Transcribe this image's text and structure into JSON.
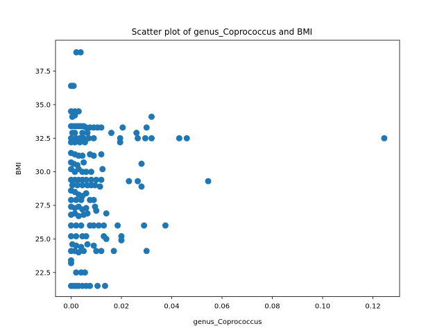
{
  "chart_data": {
    "type": "scatter",
    "title": "Scatter plot of genus_Coprococcus and BMI",
    "xlabel": "genus_Coprococcus",
    "ylabel": "BMI",
    "xlim": [
      -0.0062,
      0.1306
    ],
    "ylim": [
      20.7,
      39.8
    ],
    "xticks": [
      0.0,
      0.02,
      0.04,
      0.06,
      0.08,
      0.1,
      0.12
    ],
    "xtick_labels": [
      "0.00",
      "0.02",
      "0.04",
      "0.06",
      "0.08",
      "0.10",
      "0.12"
    ],
    "yticks": [
      22.5,
      25.0,
      27.5,
      30.0,
      32.5,
      35.0,
      37.5
    ],
    "ytick_labels": [
      "22.5",
      "25.0",
      "27.5",
      "30.0",
      "32.5",
      "35.0",
      "37.5"
    ],
    "grid": false,
    "marker_color": "#1f77b4",
    "series": [
      {
        "points": [
          [
            0.0021,
            38.9
          ],
          [
            0.0038,
            38.9
          ],
          [
            0.0,
            36.4
          ],
          [
            0.0005,
            36.4
          ],
          [
            0.001,
            36.4
          ],
          [
            0.0,
            34.5
          ],
          [
            0.0015,
            34.5
          ],
          [
            0.003,
            34.5
          ],
          [
            0.0005,
            34.1
          ],
          [
            0.0015,
            34.2
          ],
          [
            0.0,
            33.4
          ],
          [
            0.001,
            33.4
          ],
          [
            0.002,
            33.4
          ],
          [
            0.003,
            33.4
          ],
          [
            0.004,
            33.4
          ],
          [
            0.005,
            33.4
          ],
          [
            0.006,
            33.3
          ],
          [
            0.0075,
            33.3
          ],
          [
            0.009,
            33.3
          ],
          [
            0.0105,
            33.3
          ],
          [
            0.012,
            33.3
          ],
          [
            0.0005,
            32.9
          ],
          [
            0.0015,
            32.9
          ],
          [
            0.0045,
            32.9
          ],
          [
            0.0065,
            32.9
          ],
          [
            0.0,
            32.5
          ],
          [
            0.002,
            32.5
          ],
          [
            0.0035,
            32.5
          ],
          [
            0.005,
            32.5
          ],
          [
            0.007,
            32.5
          ],
          [
            0.009,
            32.5
          ],
          [
            0.0,
            32.2
          ],
          [
            0.0015,
            32.2
          ],
          [
            0.0035,
            32.2
          ],
          [
            0.0055,
            32.2
          ],
          [
            0.016,
            32.9
          ],
          [
            0.0195,
            32.2
          ],
          [
            0.0195,
            32.5
          ],
          [
            0.0205,
            33.3
          ],
          [
            0.026,
            32.9
          ],
          [
            0.0265,
            32.5
          ],
          [
            0.0295,
            32.5
          ],
          [
            0.03,
            33.3
          ],
          [
            0.032,
            32.5
          ],
          [
            0.032,
            34.1
          ],
          [
            0.043,
            32.5
          ],
          [
            0.046,
            32.5
          ],
          [
            0.1245,
            32.5
          ],
          [
            0.0,
            31.4
          ],
          [
            0.0015,
            31.3
          ],
          [
            0.003,
            31.2
          ],
          [
            0.0045,
            31.2
          ],
          [
            0.0075,
            31.3
          ],
          [
            0.009,
            31.2
          ],
          [
            0.012,
            31.3
          ],
          [
            0.0,
            30.7
          ],
          [
            0.001,
            30.6
          ],
          [
            0.0025,
            30.5
          ],
          [
            0.005,
            30.7
          ],
          [
            0.028,
            30.6
          ],
          [
            0.0,
            30.2
          ],
          [
            0.0015,
            30.0
          ],
          [
            0.003,
            30.2
          ],
          [
            0.0045,
            30.0
          ],
          [
            0.006,
            30.0
          ],
          [
            0.008,
            30.0
          ],
          [
            0.0125,
            30.2
          ],
          [
            0.0,
            29.4
          ],
          [
            0.0015,
            29.4
          ],
          [
            0.003,
            29.4
          ],
          [
            0.0045,
            29.4
          ],
          [
            0.006,
            29.4
          ],
          [
            0.008,
            29.4
          ],
          [
            0.01,
            29.4
          ],
          [
            0.012,
            29.4
          ],
          [
            0.0005,
            29.0
          ],
          [
            0.0025,
            29.0
          ],
          [
            0.0045,
            29.0
          ],
          [
            0.0065,
            29.0
          ],
          [
            0.008,
            29.0
          ],
          [
            0.0095,
            29.0
          ],
          [
            0.0115,
            28.9
          ],
          [
            0.023,
            29.3
          ],
          [
            0.0265,
            29.3
          ],
          [
            0.028,
            28.9
          ],
          [
            0.0545,
            29.3
          ],
          [
            0.0,
            28.6
          ],
          [
            0.0015,
            28.5
          ],
          [
            0.003,
            28.3
          ],
          [
            0.0045,
            28.2
          ],
          [
            0.006,
            28.4
          ],
          [
            0.0,
            27.9
          ],
          [
            0.002,
            27.9
          ],
          [
            0.004,
            27.9
          ],
          [
            0.0075,
            27.9
          ],
          [
            0.009,
            27.9
          ],
          [
            0.0,
            27.4
          ],
          [
            0.0015,
            27.3
          ],
          [
            0.003,
            27.4
          ],
          [
            0.0045,
            27.2
          ],
          [
            0.006,
            27.3
          ],
          [
            0.0095,
            27.4
          ],
          [
            0.01,
            27.1
          ],
          [
            0.0,
            26.8
          ],
          [
            0.0015,
            26.9
          ],
          [
            0.003,
            26.7
          ],
          [
            0.005,
            26.8
          ],
          [
            0.0065,
            26.9
          ],
          [
            0.014,
            26.9
          ],
          [
            0.0,
            26.0
          ],
          [
            0.002,
            26.0
          ],
          [
            0.004,
            26.0
          ],
          [
            0.0075,
            26.0
          ],
          [
            0.009,
            26.0
          ],
          [
            0.011,
            26.0
          ],
          [
            0.013,
            26.0
          ],
          [
            0.0185,
            26.0
          ],
          [
            0.029,
            26.0
          ],
          [
            0.0375,
            26.0
          ],
          [
            0.0,
            25.2
          ],
          [
            0.002,
            25.2
          ],
          [
            0.0045,
            25.2
          ],
          [
            0.006,
            25.2
          ],
          [
            0.013,
            25.2
          ],
          [
            0.014,
            25.0
          ],
          [
            0.02,
            25.2
          ],
          [
            0.02,
            24.9
          ],
          [
            0.0005,
            24.6
          ],
          [
            0.002,
            24.5
          ],
          [
            0.004,
            24.4
          ],
          [
            0.0065,
            24.6
          ],
          [
            0.009,
            24.5
          ],
          [
            0.0,
            24.1
          ],
          [
            0.0015,
            24.1
          ],
          [
            0.003,
            24.0
          ],
          [
            0.005,
            24.1
          ],
          [
            0.01,
            24.1
          ],
          [
            0.012,
            24.1
          ],
          [
            0.017,
            24.1
          ],
          [
            0.03,
            24.1
          ],
          [
            0.0,
            23.4
          ],
          [
            0.0,
            23.2
          ],
          [
            0.002,
            22.5
          ],
          [
            0.004,
            22.5
          ],
          [
            0.0055,
            22.5
          ],
          [
            0.0,
            21.5
          ],
          [
            0.001,
            21.5
          ],
          [
            0.002,
            21.5
          ],
          [
            0.003,
            21.5
          ],
          [
            0.0045,
            21.5
          ],
          [
            0.006,
            21.5
          ],
          [
            0.0075,
            21.5
          ],
          [
            0.0105,
            21.5
          ],
          [
            0.0135,
            21.5
          ]
        ]
      }
    ]
  }
}
